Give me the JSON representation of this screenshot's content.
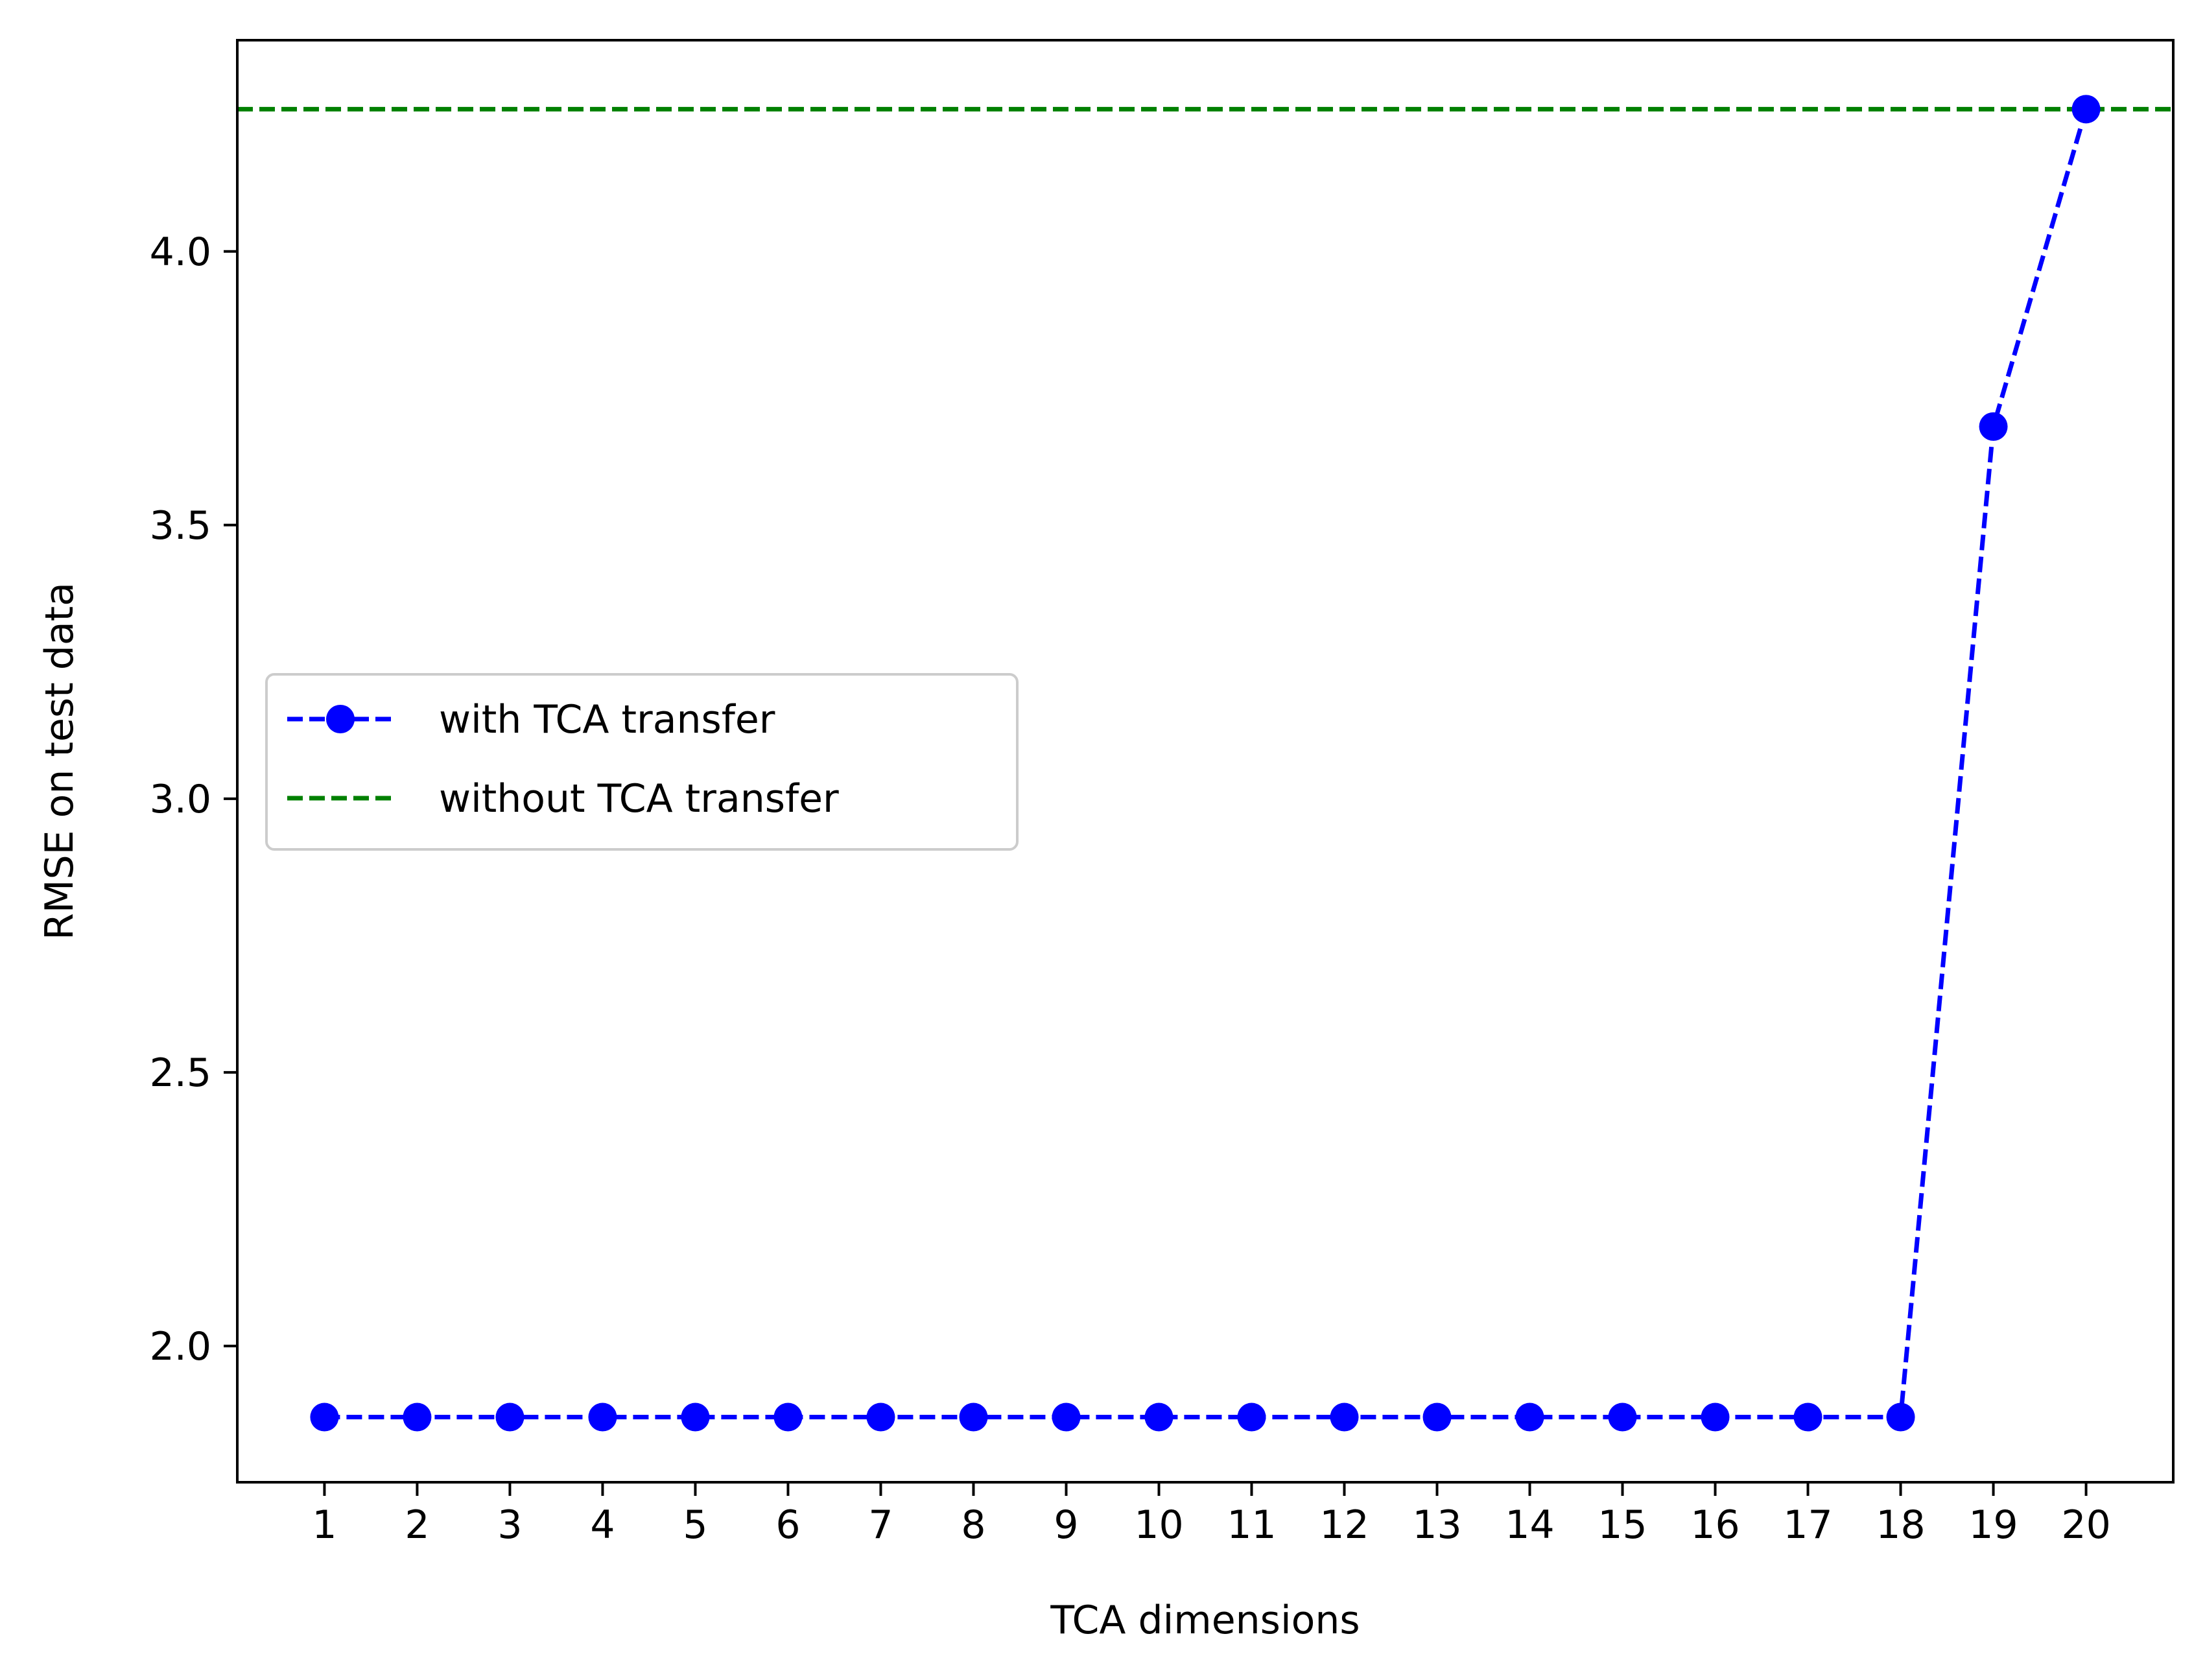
{
  "chart_data": {
    "type": "line",
    "title": "",
    "xlabel": "TCA dimensions",
    "ylabel": "RMSE on test data",
    "x": [
      1,
      2,
      3,
      4,
      5,
      6,
      7,
      8,
      9,
      10,
      11,
      12,
      13,
      14,
      15,
      16,
      17,
      18,
      19,
      20
    ],
    "xticks": [
      "1",
      "2",
      "3",
      "4",
      "5",
      "6",
      "7",
      "8",
      "9",
      "10",
      "11",
      "12",
      "13",
      "14",
      "15",
      "16",
      "17",
      "18",
      "19",
      "20"
    ],
    "yticks": [
      "2.0",
      "2.5",
      "3.0",
      "3.5",
      "4.0"
    ],
    "xlim": [
      0.06,
      20.94
    ],
    "ylim": [
      1.751,
      4.386
    ],
    "grid": false,
    "legend_position": "center-left",
    "series": [
      {
        "name": "with TCA transfer",
        "style": "dashed line with circle markers",
        "color": "#0000ff",
        "values": [
          1.87,
          1.87,
          1.87,
          1.87,
          1.87,
          1.87,
          1.87,
          1.87,
          1.87,
          1.87,
          1.87,
          1.87,
          1.87,
          1.87,
          1.87,
          1.87,
          1.87,
          1.87,
          3.68,
          4.26
        ]
      },
      {
        "name": "without TCA transfer",
        "style": "dashed horizontal line",
        "color": "#008000",
        "constant": 4.26
      }
    ]
  }
}
